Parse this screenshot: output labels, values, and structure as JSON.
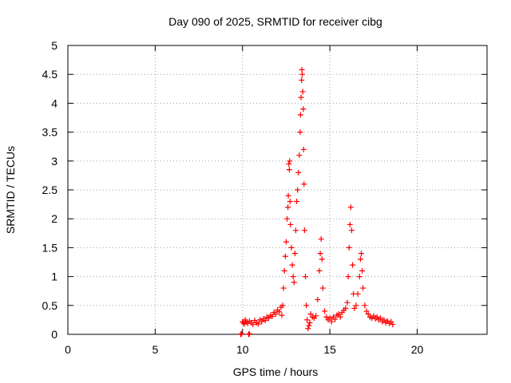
{
  "chart_data": {
    "type": "scatter",
    "title": "Day 090 of 2025, SRMTID for receiver cibg",
    "xlabel": "GPS time / hours",
    "ylabel": "SRMTID / TECUs",
    "xlim": [
      0,
      24
    ],
    "ylim": [
      0,
      5
    ],
    "xticks": [
      "0",
      "5",
      "10",
      "15",
      "20"
    ],
    "yticks": [
      "0",
      "0.5",
      "1",
      "1.5",
      "2",
      "2.5",
      "3",
      "3.5",
      "4",
      "4.5",
      "5"
    ],
    "grid": true,
    "series": [
      {
        "name": "SRMTID",
        "color": "#ff0000",
        "marker": "plus",
        "points": [
          [
            9.9,
            0.0
          ],
          [
            9.95,
            0.01
          ],
          [
            10.35,
            0.0
          ],
          [
            10.4,
            0.01
          ],
          [
            10.0,
            0.22
          ],
          [
            10.05,
            0.2
          ],
          [
            10.1,
            0.18
          ],
          [
            10.15,
            0.25
          ],
          [
            10.2,
            0.21
          ],
          [
            10.3,
            0.19
          ],
          [
            10.4,
            0.23
          ],
          [
            10.5,
            0.2
          ],
          [
            10.6,
            0.17
          ],
          [
            10.7,
            0.24
          ],
          [
            10.8,
            0.2
          ],
          [
            10.9,
            0.18
          ],
          [
            11.0,
            0.25
          ],
          [
            11.1,
            0.22
          ],
          [
            11.2,
            0.27
          ],
          [
            11.3,
            0.24
          ],
          [
            11.4,
            0.3
          ],
          [
            11.5,
            0.28
          ],
          [
            11.6,
            0.33
          ],
          [
            11.7,
            0.31
          ],
          [
            11.8,
            0.38
          ],
          [
            11.9,
            0.35
          ],
          [
            12.0,
            0.42
          ],
          [
            12.1,
            0.39
          ],
          [
            12.2,
            0.47
          ],
          [
            12.25,
            0.33
          ],
          [
            12.3,
            0.5
          ],
          [
            12.35,
            0.8
          ],
          [
            12.4,
            1.1
          ],
          [
            12.45,
            1.35
          ],
          [
            12.5,
            1.6
          ],
          [
            12.55,
            2.0
          ],
          [
            12.6,
            2.2
          ],
          [
            12.62,
            2.4
          ],
          [
            12.65,
            2.95
          ],
          [
            12.68,
            2.85
          ],
          [
            12.7,
            3.0
          ],
          [
            12.72,
            2.3
          ],
          [
            12.75,
            1.9
          ],
          [
            12.8,
            1.5
          ],
          [
            12.85,
            1.2
          ],
          [
            12.9,
            1.0
          ],
          [
            12.95,
            0.9
          ],
          [
            13.0,
            1.4
          ],
          [
            13.05,
            1.8
          ],
          [
            13.1,
            2.3
          ],
          [
            13.15,
            2.5
          ],
          [
            13.2,
            2.8
          ],
          [
            13.25,
            3.1
          ],
          [
            13.3,
            3.5
          ],
          [
            13.32,
            3.8
          ],
          [
            13.35,
            4.1
          ],
          [
            13.38,
            4.4
          ],
          [
            13.4,
            4.58
          ],
          [
            13.42,
            4.5
          ],
          [
            13.45,
            4.2
          ],
          [
            13.48,
            3.9
          ],
          [
            13.5,
            3.2
          ],
          [
            13.52,
            2.6
          ],
          [
            13.55,
            1.8
          ],
          [
            13.6,
            1.0
          ],
          [
            13.65,
            0.5
          ],
          [
            13.7,
            0.25
          ],
          [
            13.75,
            0.1
          ],
          [
            13.8,
            0.15
          ],
          [
            13.85,
            0.2
          ],
          [
            13.9,
            0.35
          ],
          [
            14.0,
            0.3
          ],
          [
            14.1,
            0.28
          ],
          [
            14.2,
            0.32
          ],
          [
            14.3,
            0.6
          ],
          [
            14.4,
            1.1
          ],
          [
            14.45,
            1.4
          ],
          [
            14.5,
            1.65
          ],
          [
            14.55,
            1.3
          ],
          [
            14.6,
            0.8
          ],
          [
            14.7,
            0.4
          ],
          [
            14.8,
            0.3
          ],
          [
            14.9,
            0.25
          ],
          [
            15.0,
            0.28
          ],
          [
            15.1,
            0.22
          ],
          [
            15.2,
            0.3
          ],
          [
            15.3,
            0.26
          ],
          [
            15.4,
            0.33
          ],
          [
            15.5,
            0.35
          ],
          [
            15.6,
            0.3
          ],
          [
            15.7,
            0.38
          ],
          [
            15.8,
            0.42
          ],
          [
            15.9,
            0.45
          ],
          [
            16.0,
            0.55
          ],
          [
            16.05,
            1.0
          ],
          [
            16.1,
            1.5
          ],
          [
            16.15,
            1.9
          ],
          [
            16.2,
            2.2
          ],
          [
            16.25,
            1.8
          ],
          [
            16.3,
            1.2
          ],
          [
            16.35,
            0.7
          ],
          [
            16.4,
            0.45
          ],
          [
            16.5,
            0.5
          ],
          [
            16.6,
            0.7
          ],
          [
            16.7,
            1.0
          ],
          [
            16.75,
            1.3
          ],
          [
            16.8,
            1.4
          ],
          [
            16.85,
            1.1
          ],
          [
            16.9,
            0.8
          ],
          [
            17.0,
            0.5
          ],
          [
            17.1,
            0.4
          ],
          [
            17.2,
            0.35
          ],
          [
            17.3,
            0.3
          ],
          [
            17.4,
            0.28
          ],
          [
            17.5,
            0.32
          ],
          [
            17.6,
            0.27
          ],
          [
            17.7,
            0.3
          ],
          [
            17.8,
            0.25
          ],
          [
            17.9,
            0.28
          ],
          [
            18.0,
            0.22
          ],
          [
            18.1,
            0.25
          ],
          [
            18.2,
            0.2
          ],
          [
            18.3,
            0.23
          ],
          [
            18.4,
            0.19
          ],
          [
            18.5,
            0.22
          ],
          [
            18.6,
            0.17
          ]
        ]
      }
    ]
  }
}
